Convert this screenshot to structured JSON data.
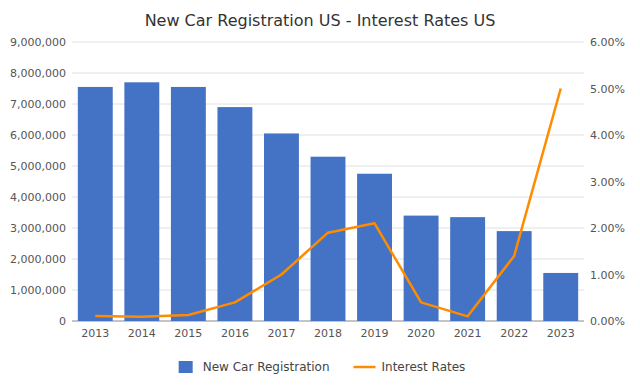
{
  "chart_data": {
    "type": "bar",
    "title": "New Car Registration US - Interest Rates US",
    "categories": [
      "2013",
      "2014",
      "2015",
      "2016",
      "2017",
      "2018",
      "2019",
      "2020",
      "2021",
      "2022",
      "2023"
    ],
    "series": [
      {
        "name": "New Car Registration",
        "type": "bar",
        "color": "#4472C4",
        "values": [
          7550000,
          7700000,
          7550000,
          6900000,
          6050000,
          5300000,
          4750000,
          3400000,
          3350000,
          2900000,
          1550000
        ]
      },
      {
        "name": "Interest Rates",
        "type": "line",
        "axis": "y2",
        "color": "#FF8C00",
        "values": [
          0.0011,
          0.0009,
          0.0013,
          0.004,
          0.01,
          0.019,
          0.021,
          0.004,
          0.001,
          0.014,
          0.05
        ]
      }
    ],
    "ylim": [
      0,
      9000000
    ],
    "yticks": [
      0,
      {
        "value": 1000000,
        "label": "1,000,000"
      },
      {
        "value": 2000000,
        "label": "2,000,000"
      },
      {
        "value": 3000000,
        "label": "3,000,000"
      },
      {
        "value": 4000000,
        "label": "4,000,000"
      },
      {
        "value": 5000000,
        "label": "5,000,000"
      },
      {
        "value": 6000000,
        "label": "6,000,000"
      },
      {
        "value": 7000000,
        "label": "7,000,000"
      },
      {
        "value": 8000000,
        "label": "8,000,000"
      },
      {
        "value": 9000000,
        "label": "9,000,000"
      }
    ],
    "y2lim": [
      0,
      0.06
    ],
    "y2ticks": [
      {
        "value": 0.0,
        "label": "0.00%"
      },
      {
        "value": 0.01,
        "label": "1.00%"
      },
      {
        "value": 0.02,
        "label": "2.00%"
      },
      {
        "value": 0.03,
        "label": "3.00%"
      },
      {
        "value": 0.04,
        "label": "4.00%"
      },
      {
        "value": 0.05,
        "label": "5.00%"
      },
      {
        "value": 0.06,
        "label": "6.00%"
      }
    ],
    "grid": true,
    "legend": "bottom"
  }
}
